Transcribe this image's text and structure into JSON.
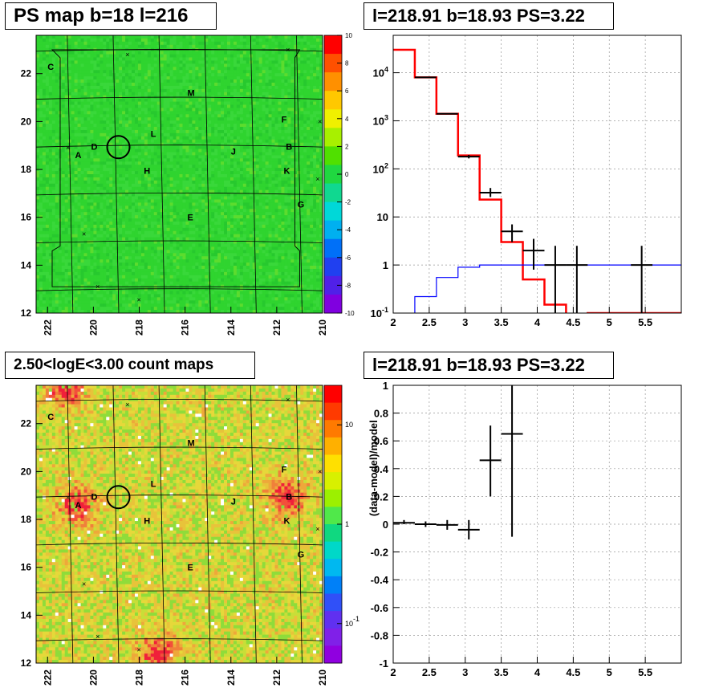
{
  "panels": {
    "ps_map_title": "PS map b=18 l=216",
    "spectrum_title": "l=218.91 b=18.93 PS=3.22",
    "count_map_title": "2.50<logE<3.00 count maps",
    "residual_title": "l=218.91 b=18.93 PS=3.22"
  },
  "chart_data": [
    {
      "type": "heatmap",
      "title": "PS map b=18 l=216",
      "x_ticks": [
        "222",
        "220",
        "218",
        "216",
        "214",
        "212",
        "210"
      ],
      "y_ticks": [
        "12",
        "14",
        "16",
        "18",
        "20",
        "22"
      ],
      "xlim": [
        222.5,
        210
      ],
      "ylim": [
        12,
        23.6
      ],
      "colorbar": {
        "range": [
          -10,
          10
        ],
        "ticks": [
          "10",
          "8",
          "6",
          "4",
          "2",
          "0",
          "-2",
          "-4",
          "-6",
          "-8",
          "-10"
        ]
      },
      "dominant_color": "#2fd42f",
      "sources": [
        {
          "label": "A",
          "l": 220.8,
          "b": 18.6
        },
        {
          "label": "B",
          "l": 211.6,
          "b": 18.95
        },
        {
          "label": "C",
          "l": 222.0,
          "b": 22.3
        },
        {
          "label": "D",
          "l": 220.1,
          "b": 18.95
        },
        {
          "label": "E",
          "l": 215.9,
          "b": 16.0
        },
        {
          "label": "F",
          "l": 211.8,
          "b": 20.1
        },
        {
          "label": "G",
          "l": 211.1,
          "b": 16.55
        },
        {
          "label": "H",
          "l": 217.8,
          "b": 17.95
        },
        {
          "label": "J",
          "l": 214.0,
          "b": 18.75
        },
        {
          "label": "K",
          "l": 211.7,
          "b": 17.95
        },
        {
          "label": "L",
          "l": 217.5,
          "b": 19.5
        },
        {
          "label": "M",
          "l": 215.9,
          "b": 21.2
        }
      ],
      "circle": {
        "l": 218.91,
        "b": 18.93
      }
    },
    {
      "type": "line",
      "title": "l=218.91 b=18.93 PS=3.22",
      "x_ticks": [
        "2",
        "2.5",
        "3",
        "3.5",
        "4",
        "4.5",
        "5",
        "5.5"
      ],
      "y_ticks": [
        "10^-1",
        "1",
        "10",
        "10^2",
        "10^3",
        "10^4"
      ],
      "xlim": [
        2,
        6
      ],
      "ylim": [
        0.1,
        60000
      ],
      "yscale": "log",
      "series": [
        {
          "color": "#ff0000",
          "bin_edges": [
            2,
            2.3,
            2.6,
            2.9,
            3.2,
            3.5,
            3.8,
            4.1,
            4.4,
            4.7,
            5.0,
            5.3,
            5.6,
            5.9,
            6.0
          ],
          "values": [
            30000,
            8000,
            1400,
            190,
            23,
            3,
            0.5,
            0.15,
            0.06,
            0.1,
            0.1,
            0.1,
            0.1,
            0.1
          ]
        },
        {
          "color": "#0000ff",
          "bin_edges": [
            2,
            2.3,
            2.6,
            2.9,
            3.2,
            3.5,
            3.8,
            4.1,
            4.4,
            4.7,
            5.0,
            5.3,
            5.6,
            5.9,
            6.0
          ],
          "values": [
            0.05,
            0.22,
            0.55,
            0.9,
            1.0,
            1.0,
            1.0,
            1.0,
            1.0,
            1.0,
            1.0,
            1.0,
            1.0,
            1.0
          ]
        },
        {
          "color": "#000000",
          "points": [
            {
              "x": 2.45,
              "xerr": 0.15,
              "y": 8000,
              "ylo": 8000,
              "yhi": 8000
            },
            {
              "x": 2.75,
              "xerr": 0.15,
              "y": 1400,
              "ylo": 1400,
              "yhi": 1400
            },
            {
              "x": 3.05,
              "xerr": 0.15,
              "y": 180,
              "ylo": 165,
              "yhi": 195
            },
            {
              "x": 3.35,
              "xerr": 0.15,
              "y": 32,
              "ylo": 26,
              "yhi": 40
            },
            {
              "x": 3.65,
              "xerr": 0.15,
              "y": 5,
              "ylo": 3,
              "yhi": 7
            },
            {
              "x": 3.95,
              "xerr": 0.15,
              "y": 2,
              "ylo": 0.8,
              "yhi": 3.5
            },
            {
              "x": 4.25,
              "xerr": 0.15,
              "y": 1,
              "ylo": 0.1,
              "yhi": 2.5
            },
            {
              "x": 4.55,
              "xerr": 0.15,
              "y": 1,
              "ylo": 0.1,
              "yhi": 2.5
            },
            {
              "x": 5.45,
              "xerr": 0.15,
              "y": 1,
              "ylo": 0.1,
              "yhi": 2.5
            }
          ]
        }
      ]
    },
    {
      "type": "heatmap",
      "title": "2.50<logE<3.00 count maps",
      "x_ticks": [
        "222",
        "220",
        "218",
        "216",
        "214",
        "212",
        "210"
      ],
      "y_ticks": [
        "12",
        "14",
        "16",
        "18",
        "20",
        "22"
      ],
      "xlim": [
        222.5,
        210
      ],
      "ylim": [
        12,
        23.6
      ],
      "colorbar": {
        "range": [
          0.04,
          25
        ],
        "scale": "log",
        "ticks": [
          "10",
          "1",
          "10^-1"
        ]
      },
      "dominant_color": "#e8d43a",
      "hotspots": [
        {
          "label": "A",
          "l": 220.7,
          "b": 18.6
        },
        {
          "label": "B",
          "l": 211.6,
          "b": 18.95
        },
        {
          "label": "bottom",
          "l": 217.2,
          "b": 12.4
        },
        {
          "label": "top",
          "l": 221.2,
          "b": 23.5
        }
      ],
      "sources": [
        {
          "label": "A",
          "l": 220.8,
          "b": 18.6
        },
        {
          "label": "B",
          "l": 211.6,
          "b": 18.95
        },
        {
          "label": "C",
          "l": 222.0,
          "b": 22.3
        },
        {
          "label": "D",
          "l": 220.1,
          "b": 18.95
        },
        {
          "label": "E",
          "l": 215.9,
          "b": 16.0
        },
        {
          "label": "F",
          "l": 211.8,
          "b": 20.1
        },
        {
          "label": "G",
          "l": 211.1,
          "b": 16.55
        },
        {
          "label": "H",
          "l": 217.8,
          "b": 17.95
        },
        {
          "label": "J",
          "l": 214.0,
          "b": 18.75
        },
        {
          "label": "K",
          "l": 211.7,
          "b": 17.95
        },
        {
          "label": "L",
          "l": 217.5,
          "b": 19.5
        },
        {
          "label": "M",
          "l": 215.9,
          "b": 21.2
        }
      ],
      "circle": {
        "l": 218.91,
        "b": 18.93
      }
    },
    {
      "type": "scatter",
      "title": "l=218.91 b=18.93 PS=3.22",
      "ylabel": "(data-model)/model",
      "x_ticks": [
        "2",
        "2.5",
        "3",
        "3.5",
        "4",
        "4.5",
        "5",
        "5.5"
      ],
      "y_ticks": [
        "-1",
        "-0.8",
        "-0.6",
        "-0.4",
        "-0.2",
        "0",
        "0.2",
        "0.4",
        "0.6",
        "0.8",
        "1"
      ],
      "xlim": [
        2,
        6
      ],
      "ylim": [
        -1,
        1
      ],
      "points": [
        {
          "x": 2.15,
          "xerr": 0.15,
          "y": 0.01,
          "ylo": 0.0,
          "yhi": 0.03
        },
        {
          "x": 2.45,
          "xerr": 0.15,
          "y": 0.0,
          "ylo": -0.02,
          "yhi": 0.02
        },
        {
          "x": 2.75,
          "xerr": 0.15,
          "y": -0.005,
          "ylo": -0.04,
          "yhi": 0.03
        },
        {
          "x": 3.05,
          "xerr": 0.15,
          "y": -0.04,
          "ylo": -0.11,
          "yhi": 0.03
        },
        {
          "x": 3.35,
          "xerr": 0.15,
          "y": 0.46,
          "ylo": 0.2,
          "yhi": 0.71
        },
        {
          "x": 3.65,
          "xerr": 0.15,
          "y": 0.65,
          "ylo": -0.09,
          "yhi": 1.0
        }
      ]
    }
  ]
}
